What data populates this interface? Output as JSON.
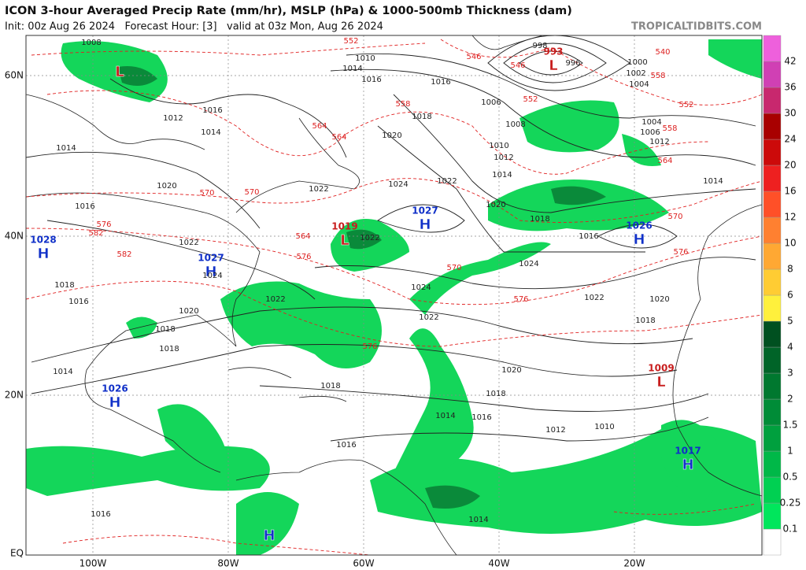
{
  "header": {
    "title": "ICON 3-hour Averaged Precip Rate (mm/hr), MSLP (hPa) & 1000-500mb Thickness (dam)",
    "subtitle": "Init: 00z Aug 26 2024   Forecast Hour: [3]   valid at 03z Mon, Aug 26 2024",
    "site": "TROPICALTIDBITS.COM"
  },
  "colorbar": {
    "labels": [
      "0.1",
      "0.25",
      "0.5",
      "1",
      "1.5",
      "2",
      "3",
      "4",
      "5",
      "6",
      "8",
      "10",
      "12",
      "16",
      "20",
      "24",
      "30",
      "36",
      "42"
    ],
    "colors": [
      "#ffffff",
      "#00e65c",
      "#00d052",
      "#00b848",
      "#00a03e",
      "#008c37",
      "#00782f",
      "#006428",
      "#005020",
      "#fff03c",
      "#ffcc33",
      "#ffa833",
      "#ff8030",
      "#ff5028",
      "#ee2020",
      "#cc0a0a",
      "#a80000",
      "#c8286e",
      "#d040b4",
      "#ee60dc"
    ]
  },
  "latitudes": [
    "60N",
    "40N",
    "20N",
    "EQ"
  ],
  "longitudes": [
    "100W",
    "80W",
    "60W",
    "40W",
    "20W"
  ],
  "centers": [
    {
      "letter": "L",
      "value": "993"
    },
    {
      "letter": "L",
      "value": ""
    },
    {
      "letter": "H",
      "value": "1027"
    },
    {
      "letter": "L",
      "value": "1019"
    },
    {
      "letter": "H",
      "value": "1026"
    },
    {
      "letter": "H",
      "value": "1027"
    },
    {
      "letter": "H",
      "value": "1028"
    },
    {
      "letter": "H",
      "value": "1026"
    },
    {
      "letter": "L",
      "value": "1009"
    },
    {
      "letter": "H",
      "value": "1017"
    },
    {
      "letter": "H",
      "value": ""
    }
  ],
  "isobar_labels": [
    "1008",
    "1010",
    "1014",
    "1016",
    "998",
    "996",
    "1000",
    "1002",
    "1004",
    "1006",
    "1008",
    "1010",
    "1012",
    "1014",
    "1016",
    "1018",
    "1020",
    "1022",
    "1024",
    "1022",
    "1020",
    "1018",
    "1016",
    "1014",
    "1012",
    "1022",
    "1024",
    "1022",
    "1020",
    "1018",
    "1016",
    "1014",
    "1018",
    "1016",
    "1014",
    "1012",
    "1010",
    "1006",
    "1004",
    "1016",
    "1018",
    "1020",
    "1022",
    "1024",
    "1022",
    "1020",
    "1018",
    "1018",
    "1016",
    "1014",
    "1012",
    "1014",
    "1016",
    "1018",
    "1020",
    "1022",
    "1024",
    "1016",
    "1014"
  ],
  "thickness_labels": [
    "552",
    "546",
    "540",
    "546",
    "552",
    "558",
    "564",
    "570",
    "576",
    "582",
    "558",
    "564",
    "570",
    "576",
    "552",
    "558",
    "564",
    "570",
    "576",
    "582",
    "576",
    "564",
    "570",
    "576"
  ]
}
